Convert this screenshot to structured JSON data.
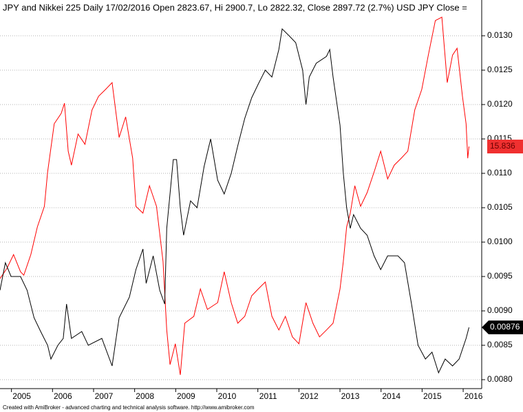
{
  "chart_data": {
    "type": "line",
    "title": "JPY and Nikkei 225 Daily 17/02/2016 Open 2823.67, Hi 2900.7, Lo 2822.32, Close 2897.72 (2.7%) USD JPY Close  =",
    "footer": "Created with AmiBroker - advanced charting and technical analysis software. http://www.amibroker.com",
    "xlim": [
      2004.47,
      2016.2
    ],
    "xticks": [
      2005,
      2006,
      2007,
      2008,
      2009,
      2010,
      2011,
      2012,
      2013,
      2014,
      2015,
      2016
    ],
    "ylim": [
      0.00787,
      0.01352
    ],
    "yticks": [
      {
        "value": 0.008,
        "label": "0.0080"
      },
      {
        "value": 0.0085,
        "label": "0.0085"
      },
      {
        "value": 0.009,
        "label": "0.0090"
      },
      {
        "value": 0.0095,
        "label": "0.0095"
      },
      {
        "value": 0.01,
        "label": "0.0100"
      },
      {
        "value": 0.0105,
        "label": "0.0105"
      },
      {
        "value": 0.011,
        "label": "0.0110"
      },
      {
        "value": 0.0115,
        "label": "0.0115"
      },
      {
        "value": 0.012,
        "label": "0.0120"
      },
      {
        "value": 0.0125,
        "label": "0.0125"
      },
      {
        "value": 0.013,
        "label": "0.0130"
      }
    ],
    "y2lim": [
      6.66,
      21.39
    ],
    "grid": true,
    "series": [
      {
        "color": "#000000",
        "x": [
          2004.47,
          2004.6,
          2004.74,
          2004.97,
          2005.13,
          2005.3,
          2005.46,
          2005.63,
          2005.71,
          2005.88,
          2006.01,
          2006.09,
          2006.21,
          2006.46,
          2006.62,
          2006.95,
          2007.2,
          2007.37,
          2007.62,
          2007.78,
          2007.95,
          2008.03,
          2008.2,
          2008.36,
          2008.48,
          2008.53,
          2008.69,
          2008.77,
          2008.86,
          2008.94,
          2009.11,
          2009.27,
          2009.44,
          2009.6,
          2009.77,
          2009.93,
          2010.1,
          2010.26,
          2010.43,
          2010.6,
          2010.76,
          2010.93,
          2011.09,
          2011.26,
          2011.34,
          2011.51,
          2011.67,
          2011.84,
          2011.92,
          2012.0,
          2012.17,
          2012.42,
          2012.5,
          2012.58,
          2012.75,
          2012.83,
          2012.91,
          2013.0,
          2013.08,
          2013.25,
          2013.41,
          2013.58,
          2013.74,
          2013.91,
          2014.16,
          2014.32,
          2014.49,
          2014.65,
          2014.83,
          2014.99,
          2015.15,
          2015.31,
          2015.49,
          2015.65,
          2015.82,
          2015.89
        ],
        "values": [
          0.0093,
          0.0097,
          0.0095,
          0.0095,
          0.0093,
          0.0089,
          0.0087,
          0.0085,
          0.0083,
          0.0085,
          0.0086,
          0.0091,
          0.0086,
          0.0087,
          0.0085,
          0.0086,
          0.0082,
          0.0089,
          0.0092,
          0.0096,
          0.0099,
          0.0094,
          0.0098,
          0.0093,
          0.0091,
          0.0102,
          0.0112,
          0.0112,
          0.0105,
          0.0101,
          0.0106,
          0.0105,
          0.0111,
          0.0115,
          0.0109,
          0.0107,
          0.011,
          0.0114,
          0.0118,
          0.0121,
          0.0123,
          0.0125,
          0.0124,
          0.0128,
          0.0131,
          0.013,
          0.0129,
          0.0125,
          0.012,
          0.0124,
          0.0126,
          0.0127,
          0.0128,
          0.0124,
          0.0117,
          0.011,
          0.0105,
          0.0102,
          0.0104,
          0.0102,
          0.0101,
          0.0098,
          0.0096,
          0.0098,
          0.0098,
          0.0097,
          0.0091,
          0.0085,
          0.0083,
          0.0084,
          0.0081,
          0.0083,
          0.0082,
          0.0083,
          0.0086,
          0.00876
        ]
      },
      {
        "color": "#ff0000",
        "axis": "y2",
        "x": [
          2004.47,
          2004.64,
          2004.8,
          2004.97,
          2005.05,
          2005.22,
          2005.38,
          2005.55,
          2005.63,
          2005.79,
          2005.96,
          2006.04,
          2006.13,
          2006.21,
          2006.37,
          2006.54,
          2006.71,
          2006.87,
          2007.04,
          2007.2,
          2007.37,
          2007.53,
          2007.7,
          2007.78,
          2007.95,
          2008.11,
          2008.28,
          2008.44,
          2008.53,
          2008.61,
          2008.74,
          2008.86,
          2008.97,
          2009.19,
          2009.35,
          2009.52,
          2009.77,
          2009.93,
          2010.1,
          2010.26,
          2010.43,
          2010.6,
          2010.76,
          2010.93,
          2011.09,
          2011.26,
          2011.42,
          2011.59,
          2011.75,
          2011.92,
          2012.09,
          2012.25,
          2012.42,
          2012.58,
          2012.75,
          2012.83,
          2012.91,
          2013.0,
          2013.11,
          2013.25,
          2013.41,
          2013.58,
          2013.74,
          2013.91,
          2014.07,
          2014.24,
          2014.4,
          2014.57,
          2014.74,
          2014.9,
          2015.07,
          2015.23,
          2015.36,
          2015.49,
          2015.6,
          2015.73,
          2015.82,
          2015.86,
          2015.89
        ],
        "values": [
          10.83,
          11.22,
          11.74,
          11.09,
          10.96,
          11.74,
          12.79,
          13.57,
          14.87,
          16.7,
          17.09,
          17.48,
          15.66,
          15.13,
          16.31,
          15.92,
          17.22,
          17.74,
          18.0,
          18.26,
          16.18,
          16.96,
          15.39,
          13.57,
          13.31,
          14.35,
          13.57,
          11.48,
          8.88,
          7.57,
          8.36,
          7.18,
          9.14,
          9.4,
          10.44,
          9.66,
          9.92,
          11.09,
          9.92,
          9.14,
          9.4,
          10.18,
          10.44,
          10.7,
          9.4,
          8.88,
          9.4,
          8.62,
          8.36,
          9.92,
          9.14,
          8.62,
          8.88,
          9.14,
          10.44,
          11.48,
          12.79,
          13.31,
          14.35,
          13.57,
          14.09,
          14.87,
          15.66,
          14.61,
          15.13,
          15.39,
          15.66,
          17.22,
          18.0,
          19.3,
          20.61,
          20.74,
          18.26,
          19.3,
          19.56,
          17.74,
          16.7,
          15.39,
          15.836
        ]
      }
    ]
  }
}
